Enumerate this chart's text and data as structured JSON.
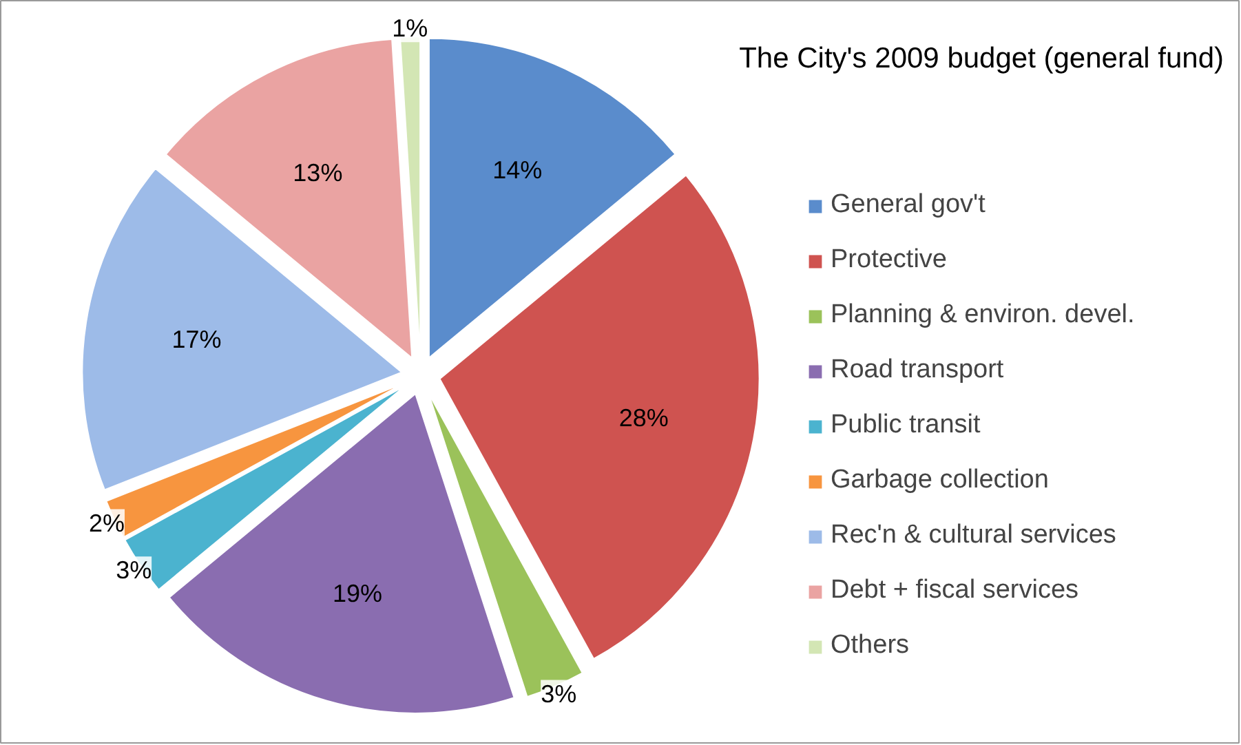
{
  "chart_data": {
    "type": "pie",
    "title": "The City's 2009 budget (general fund)",
    "categories": [
      "General gov't",
      "Protective",
      "Planning & environ. devel.",
      "Road transport",
      "Public transit",
      "Garbage collection",
      "Rec'n & cultural services",
      "Debt + fiscal services",
      "Others"
    ],
    "values": [
      14,
      28,
      3,
      19,
      3,
      2,
      17,
      13,
      1
    ],
    "colors": [
      "#5a8ccc",
      "#cf5350",
      "#9bc25a",
      "#8a6db0",
      "#4bb3cf",
      "#f7953f",
      "#9dbbe8",
      "#eaa3a2",
      "#d3e6b4"
    ],
    "value_labels": [
      "14%",
      "28%",
      "3%",
      "19%",
      "3%",
      "2%",
      "17%",
      "13%",
      "1%"
    ],
    "legend": "right"
  }
}
